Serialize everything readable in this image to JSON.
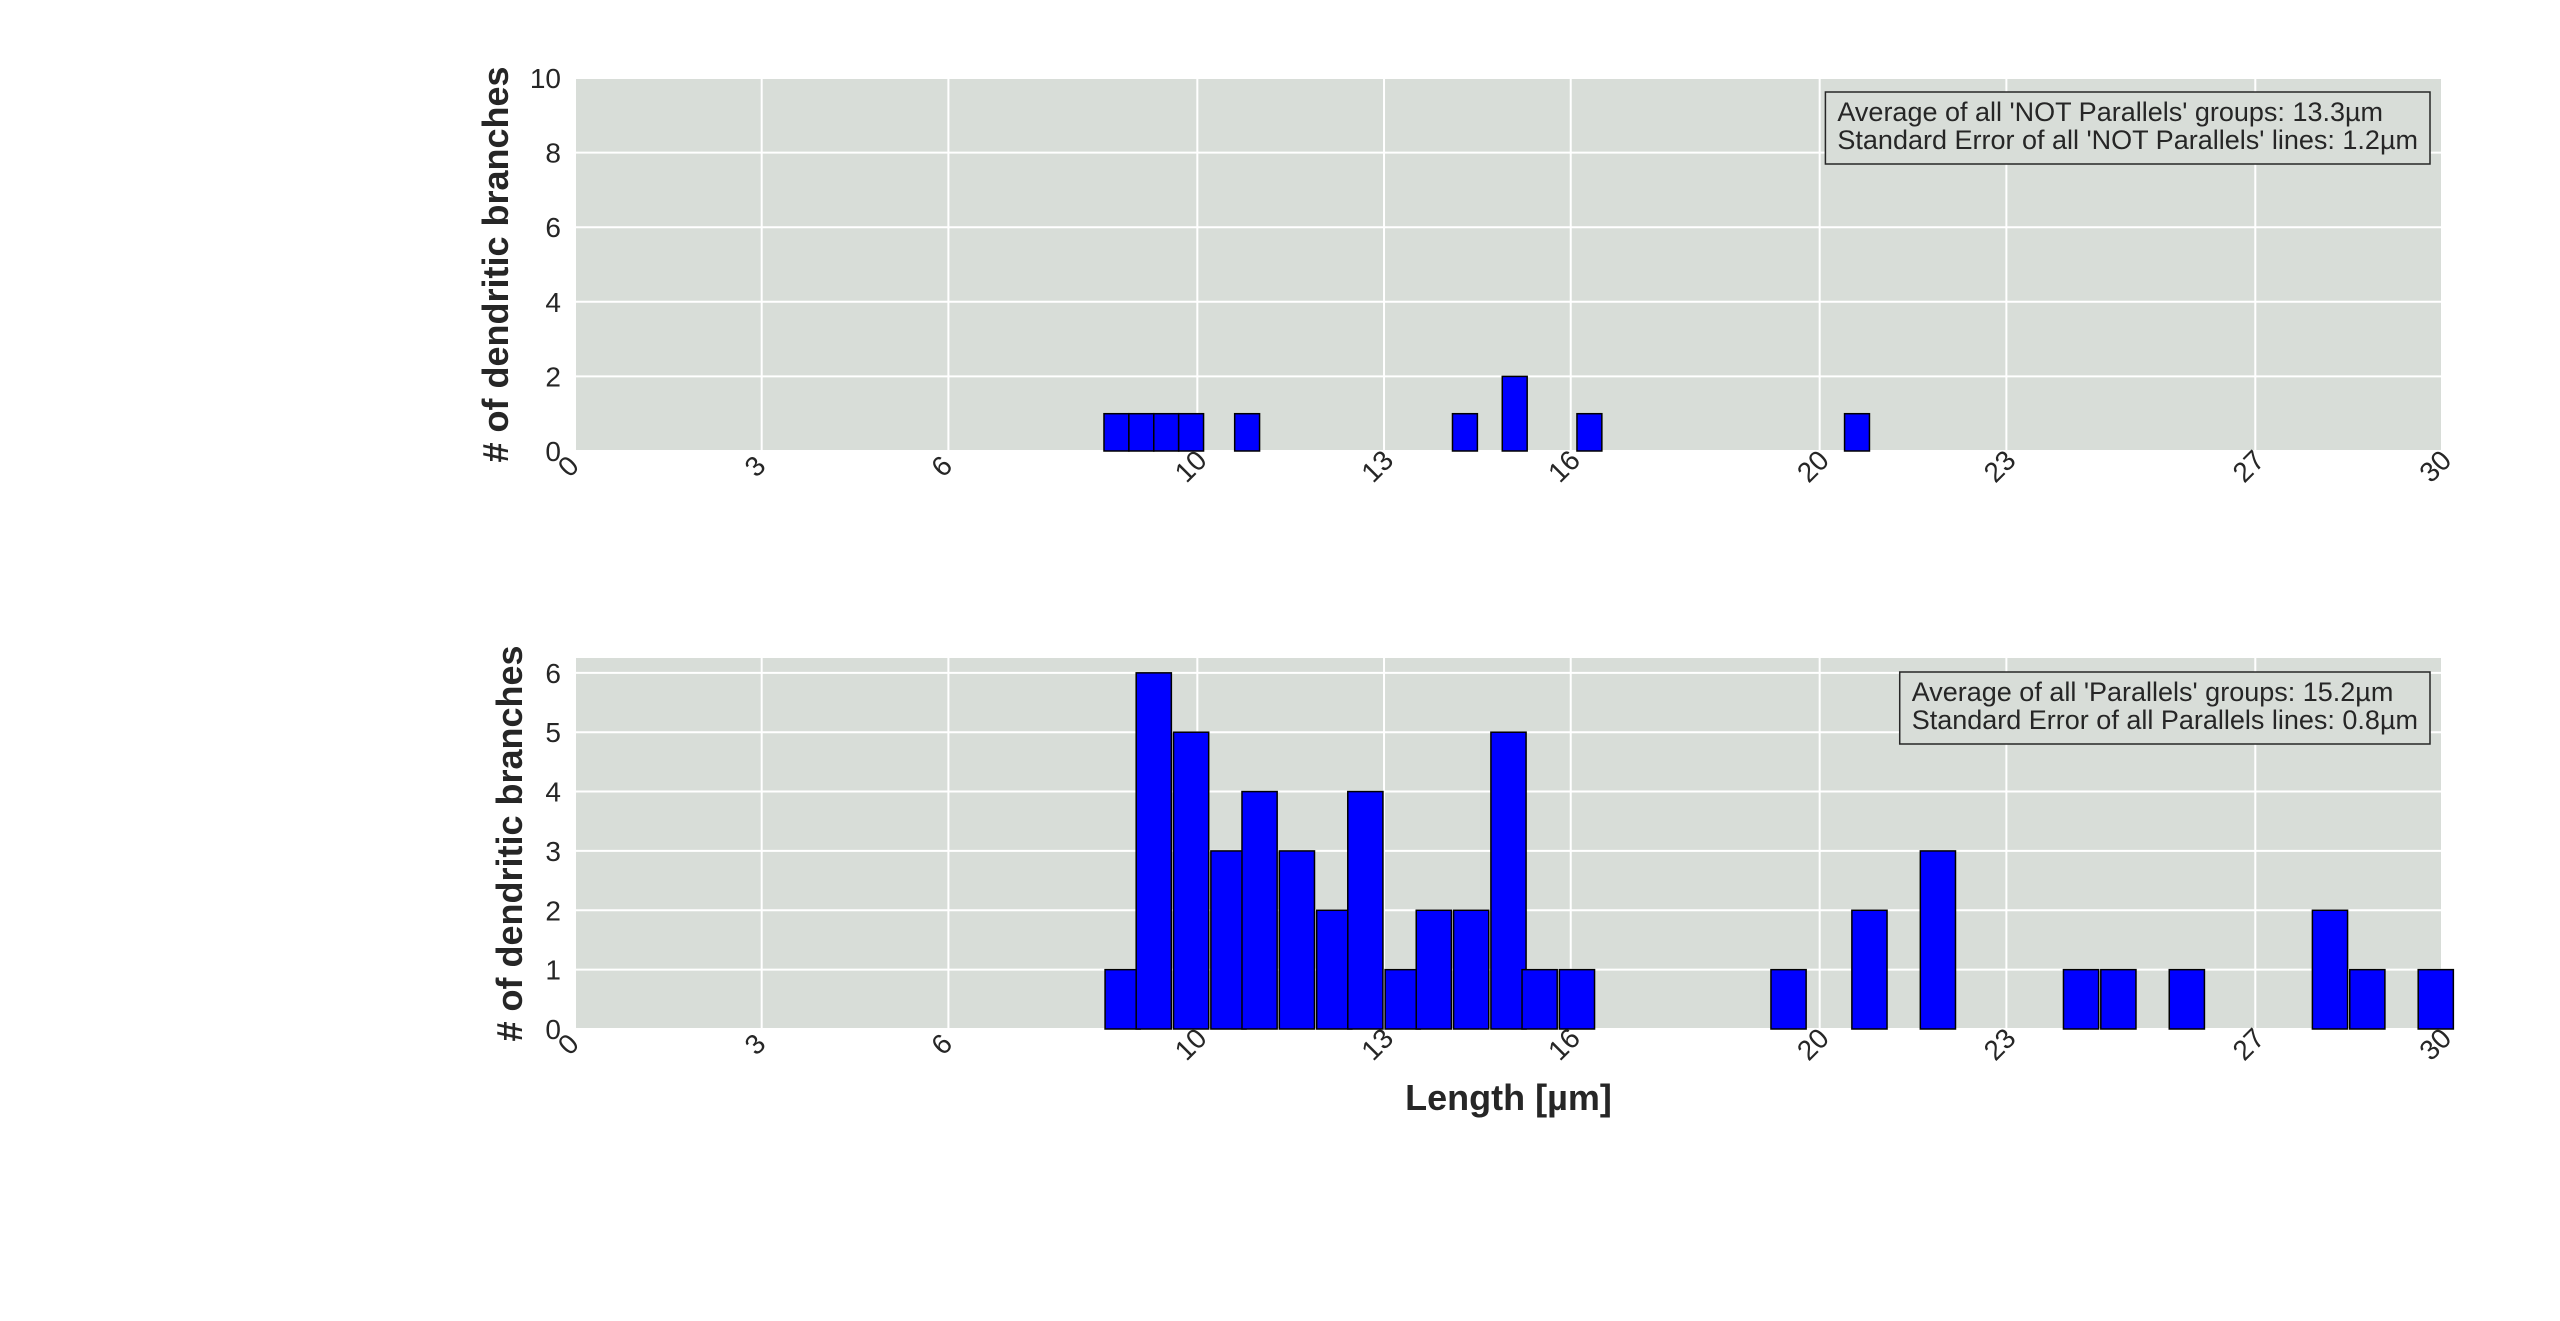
{
  "chart_data": [
    {
      "type": "bar",
      "subplot": "top",
      "title": "",
      "xlabel": "",
      "ylabel": "# of dendritic branches",
      "xlim": [
        0,
        30
      ],
      "ylim": [
        0,
        10
      ],
      "xticks": [
        0,
        3,
        6,
        10,
        13,
        16,
        20,
        23,
        27,
        30
      ],
      "yticks": [
        0,
        2,
        4,
        6,
        8,
        10
      ],
      "grid": true,
      "legend_placement": "top-right",
      "annotation": [
        "Average of all 'NOT Parallels' groups: 13.3µm",
        "Standard Error of all 'NOT Parallels' lines: 1.2µm"
      ],
      "bar_color": "#0000ff",
      "background": "#d8ddd8",
      "bin_width": 0.4,
      "bins": [
        {
          "x": 8.7,
          "count": 1
        },
        {
          "x": 9.1,
          "count": 1
        },
        {
          "x": 9.5,
          "count": 1
        },
        {
          "x": 9.9,
          "count": 1
        },
        {
          "x": 10.8,
          "count": 1
        },
        {
          "x": 14.3,
          "count": 1
        },
        {
          "x": 15.1,
          "count": 2
        },
        {
          "x": 16.3,
          "count": 1
        },
        {
          "x": 20.6,
          "count": 1
        }
      ]
    },
    {
      "type": "bar",
      "subplot": "bottom",
      "title": "",
      "xlabel": "Length [µm]",
      "ylabel": "# of dendritic branches",
      "xlim": [
        0,
        30
      ],
      "ylim": [
        0,
        6.25
      ],
      "xticks": [
        0,
        3,
        6,
        10,
        13,
        16,
        20,
        23,
        27,
        30
      ],
      "yticks": [
        0,
        1,
        2,
        3,
        4,
        5,
        6
      ],
      "grid": true,
      "legend_placement": "top-right",
      "annotation": [
        "Average of all 'Parallels' groups: 15.2µm",
        "Standard Error of all Parallels lines: 0.8µm"
      ],
      "bar_color": "#0000ff",
      "background": "#d8ddd8",
      "bin_width": 0.565,
      "bins": [
        {
          "x": 8.8,
          "count": 1
        },
        {
          "x": 9.3,
          "count": 6
        },
        {
          "x": 9.9,
          "count": 5
        },
        {
          "x": 10.5,
          "count": 3
        },
        {
          "x": 11.0,
          "count": 4
        },
        {
          "x": 11.6,
          "count": 3
        },
        {
          "x": 12.2,
          "count": 2
        },
        {
          "x": 12.7,
          "count": 4
        },
        {
          "x": 13.3,
          "count": 1
        },
        {
          "x": 13.8,
          "count": 2
        },
        {
          "x": 14.4,
          "count": 2
        },
        {
          "x": 15.0,
          "count": 5
        },
        {
          "x": 15.5,
          "count": 1
        },
        {
          "x": 16.1,
          "count": 1
        },
        {
          "x": 19.5,
          "count": 1
        },
        {
          "x": 20.8,
          "count": 2
        },
        {
          "x": 21.9,
          "count": 3
        },
        {
          "x": 24.2,
          "count": 1
        },
        {
          "x": 24.8,
          "count": 1
        },
        {
          "x": 25.9,
          "count": 1
        },
        {
          "x": 28.2,
          "count": 2
        },
        {
          "x": 28.8,
          "count": 1
        },
        {
          "x": 29.9,
          "count": 1
        }
      ]
    }
  ]
}
